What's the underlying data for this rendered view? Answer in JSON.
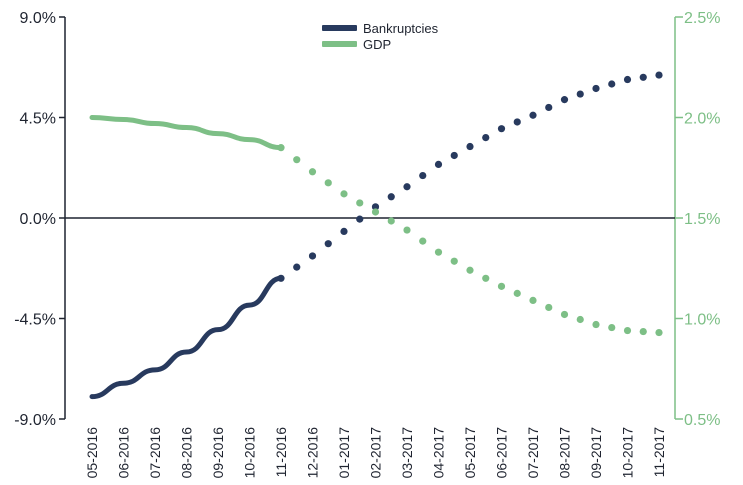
{
  "chart_data": {
    "type": "line",
    "categories": [
      "05-2016",
      "06-2016",
      "07-2016",
      "08-2016",
      "09-2016",
      "10-2016",
      "11-2016",
      "12-2016",
      "01-2017",
      "02-2017",
      "03-2017",
      "04-2017",
      "05-2017",
      "06-2017",
      "07-2017",
      "08-2017",
      "09-2017",
      "10-2017",
      "11-2017"
    ],
    "forecast_start": "11-2016",
    "series": [
      {
        "name": "Bankruptcies",
        "axis": "left",
        "color": "#283a5e",
        "values": [
          -8.0,
          -7.4,
          -6.8,
          -6.0,
          -5.0,
          -3.9,
          -2.7,
          -1.7,
          -0.6,
          0.5,
          1.4,
          2.4,
          3.2,
          4.0,
          4.6,
          5.3,
          5.8,
          6.2,
          6.4
        ]
      },
      {
        "name": "GDP",
        "axis": "right",
        "color": "#7dbf86",
        "values": [
          2.0,
          1.99,
          1.97,
          1.95,
          1.92,
          1.89,
          1.85,
          1.73,
          1.62,
          1.53,
          1.44,
          1.33,
          1.24,
          1.16,
          1.09,
          1.02,
          0.97,
          0.94,
          0.93
        ]
      }
    ],
    "y_left": {
      "ylim": [
        -9.0,
        9.0
      ],
      "ticks": [
        "9.0%",
        "4.5%",
        "0.0%",
        "-4.5%",
        "-9.0%"
      ],
      "tick_values": [
        9.0,
        4.5,
        0.0,
        -4.5,
        -9.0
      ]
    },
    "y_right": {
      "ylim": [
        0.5,
        2.5
      ],
      "ticks": [
        "2.5%",
        "2.0%",
        "1.5%",
        "1.0%",
        "0.5%"
      ],
      "tick_values": [
        2.5,
        2.0,
        1.5,
        1.0,
        0.5
      ]
    },
    "legend": {
      "position": "top-center"
    },
    "grid": false
  }
}
